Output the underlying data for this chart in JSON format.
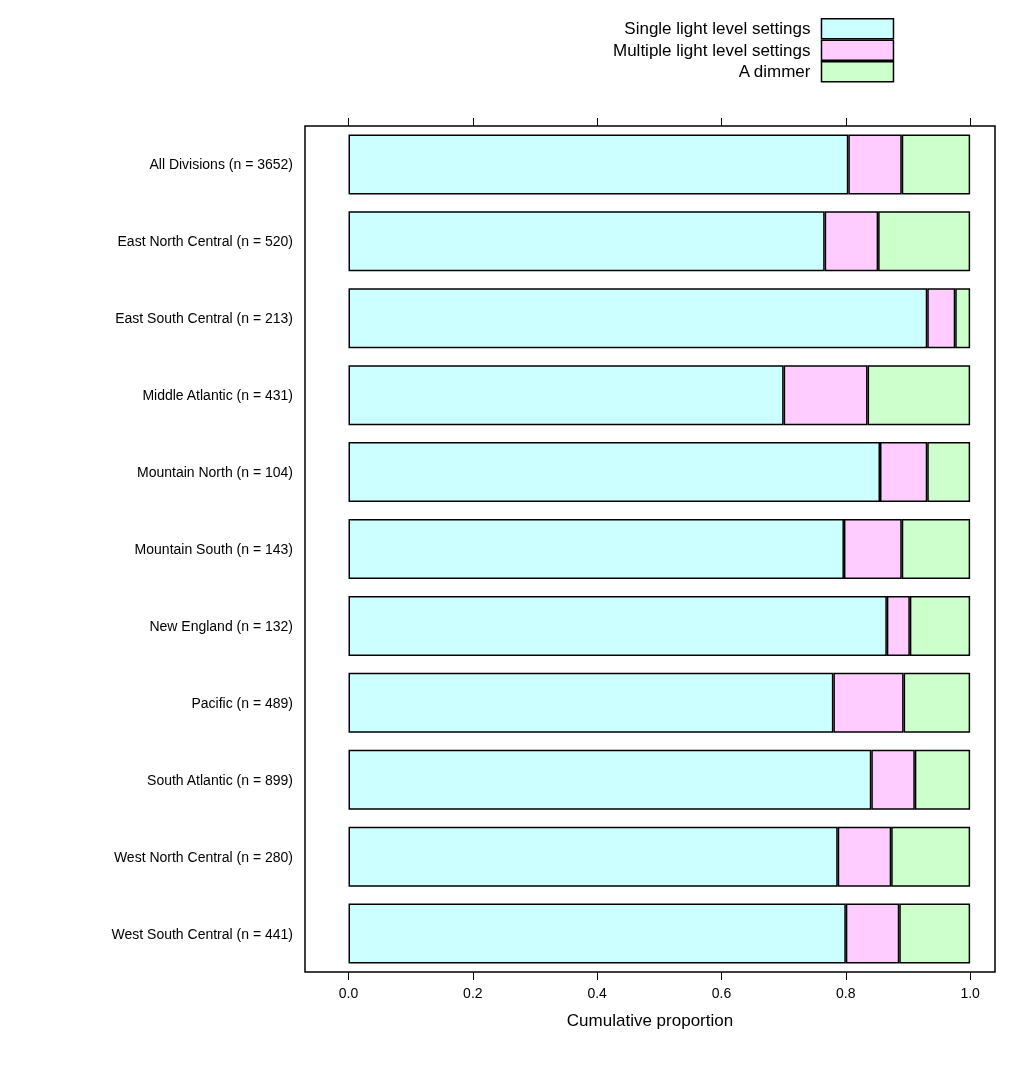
{
  "chart_data": {
    "type": "bar",
    "orientation": "horizontal",
    "stacked": true,
    "xlabel": "Cumulative proportion",
    "categories": [
      "All Divisions (n = 3652)",
      "East North Central (n = 520)",
      "East South Central (n = 213)",
      "Middle Atlantic (n = 431)",
      "Mountain North (n = 104)",
      "Mountain South (n = 143)",
      "New England (n = 132)",
      "Pacific (n = 489)",
      "South Atlantic (n = 899)",
      "West North Central (n = 280)",
      "West South Central (n = 441)"
    ],
    "series": [
      {
        "name": "Single light level settings",
        "color": "#ccffff",
        "values": [
          0.804,
          0.766,
          0.931,
          0.7,
          0.855,
          0.797,
          0.866,
          0.78,
          0.841,
          0.787,
          0.8
        ]
      },
      {
        "name": "Multiple light level settings",
        "color": "#ffccff",
        "values": [
          0.086,
          0.086,
          0.045,
          0.135,
          0.076,
          0.093,
          0.037,
          0.113,
          0.07,
          0.086,
          0.086
        ]
      },
      {
        "name": "A dimmer",
        "color": "#ccffcc",
        "values": [
          0.11,
          0.148,
          0.024,
          0.165,
          0.069,
          0.11,
          0.097,
          0.107,
          0.089,
          0.127,
          0.114
        ]
      }
    ],
    "xlim": [
      -0.07,
      1.04
    ],
    "xticks": [
      {
        "value": 0,
        "label": "0.0"
      },
      0.2,
      0.4,
      0.6,
      0.8,
      {
        "value": 1,
        "label": "1.0"
      }
    ],
    "grid": false,
    "legend": "top"
  }
}
